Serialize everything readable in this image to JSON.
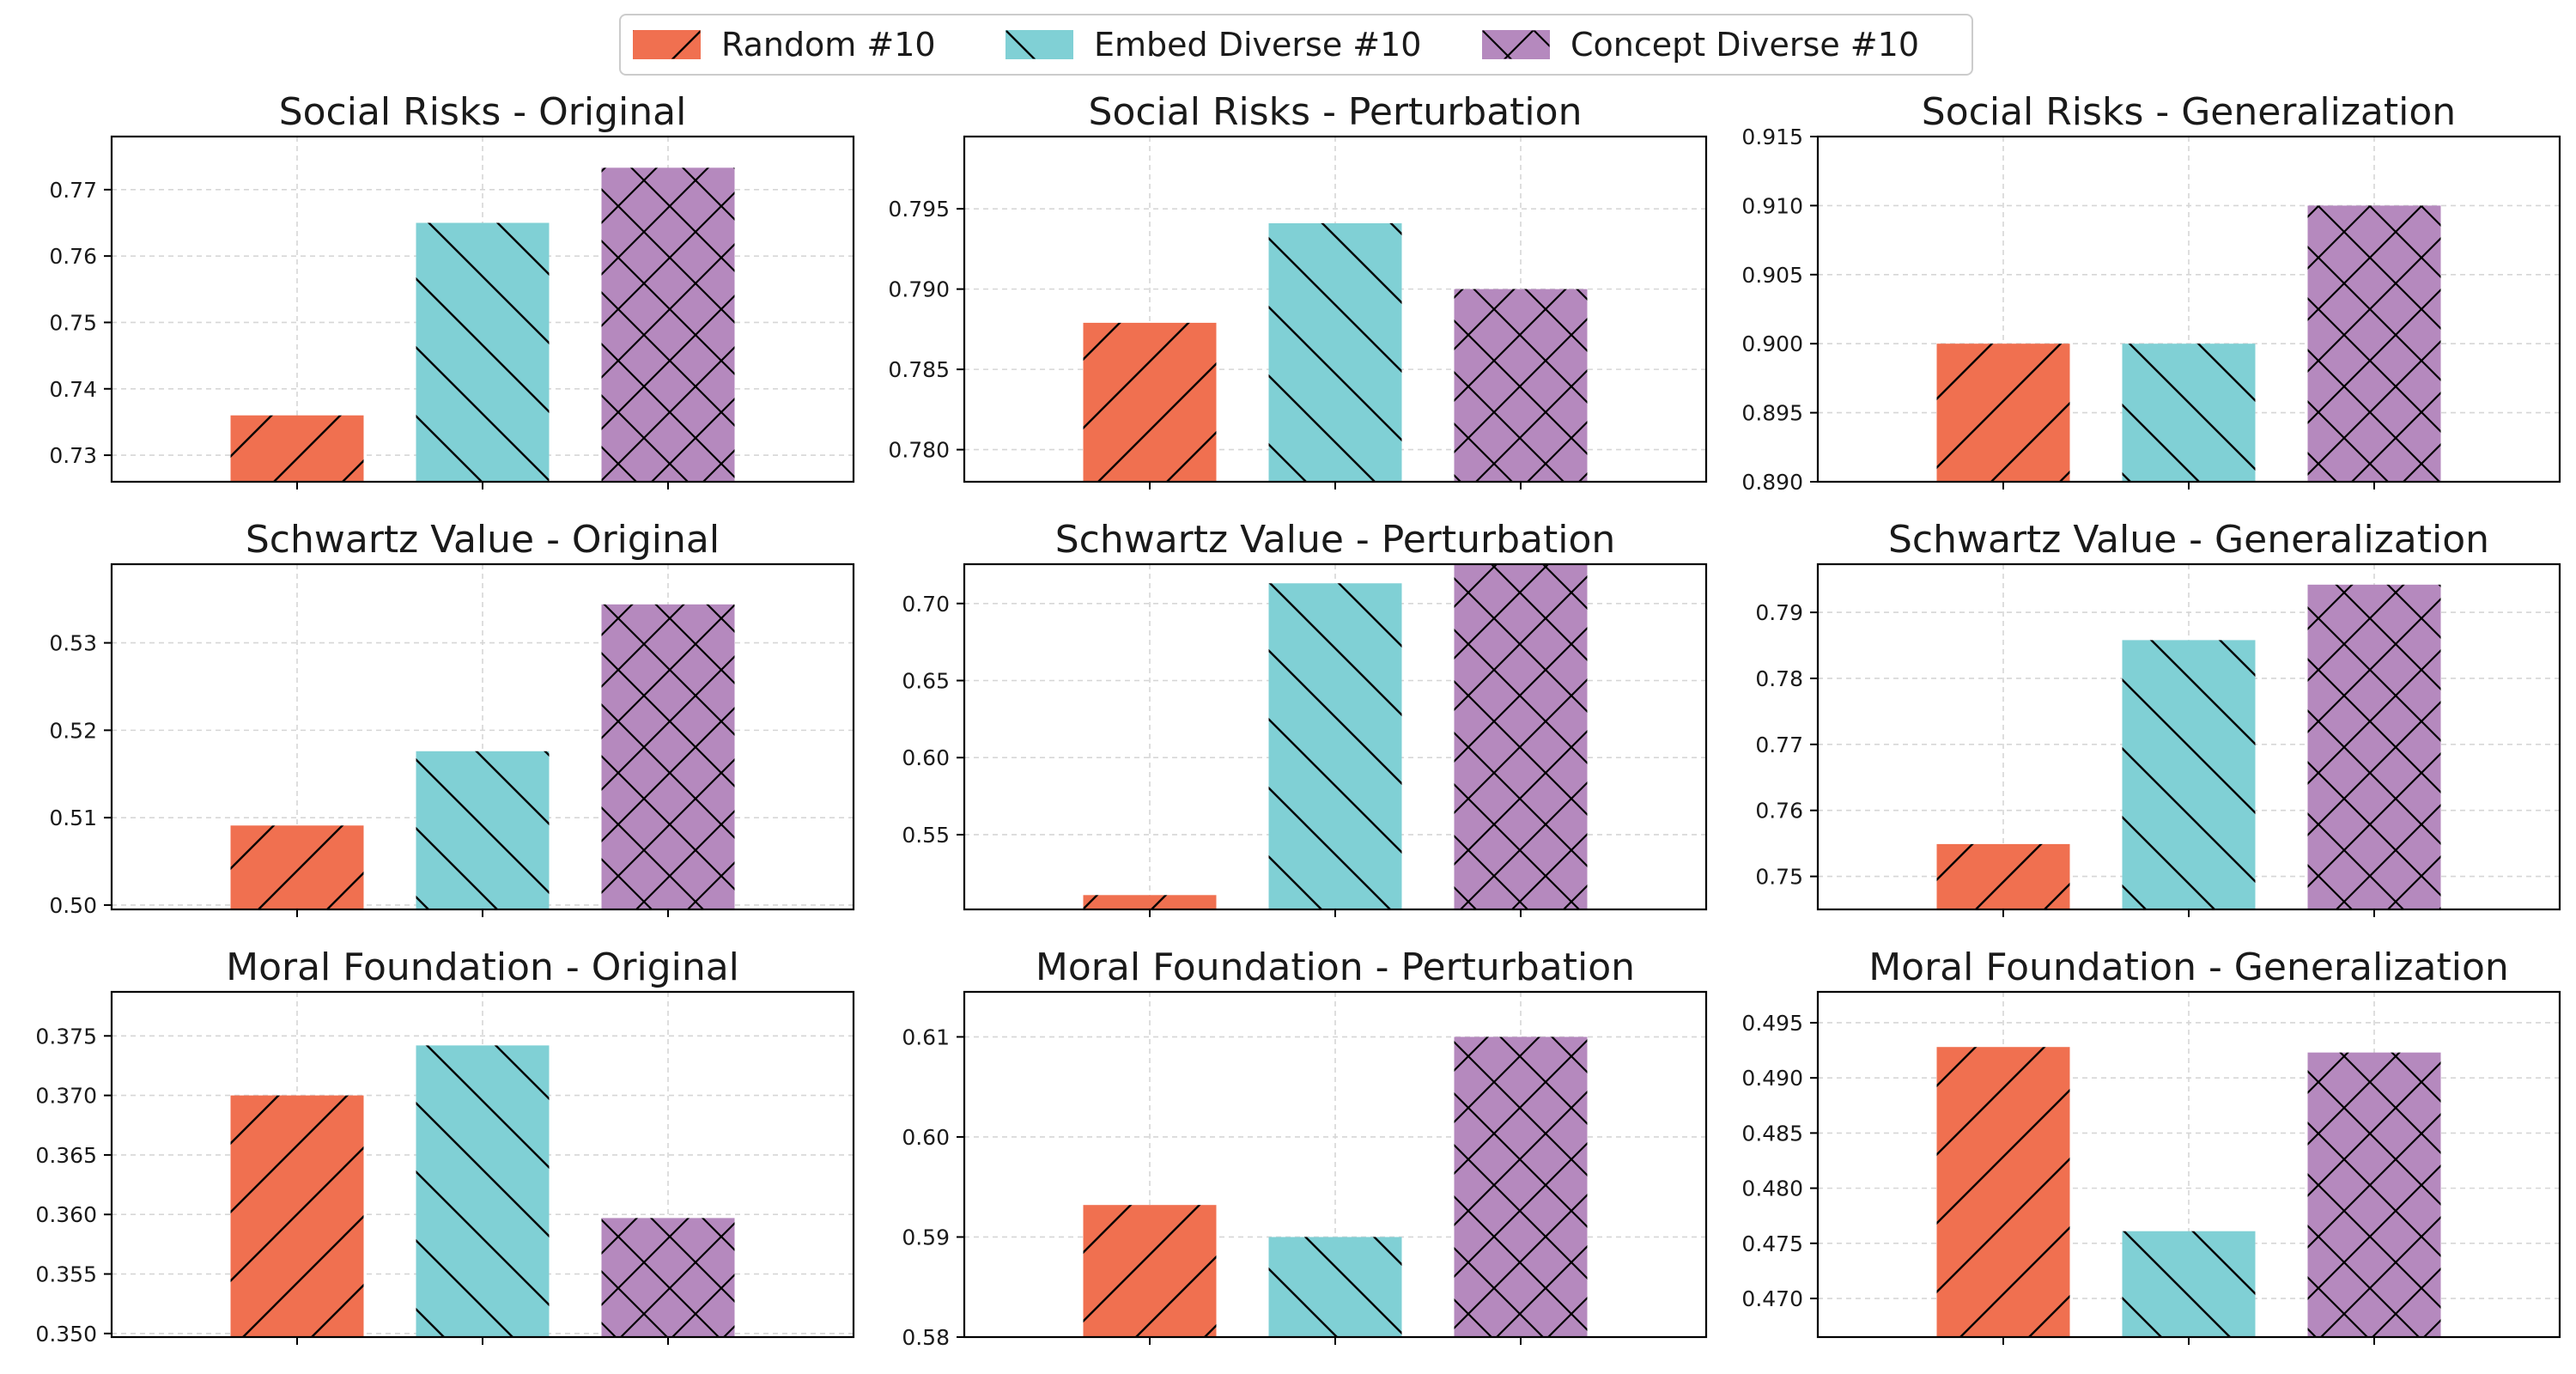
{
  "legend": [
    {
      "label": "Random #10",
      "color": "#f07050",
      "hatch": "forward"
    },
    {
      "label": "Embed Diverse #10",
      "color": "#80d0d5",
      "hatch": "back"
    },
    {
      "label": "Concept Diverse #10",
      "color": "#b589be",
      "hatch": "cross"
    }
  ],
  "chart_data": [
    {
      "type": "bar",
      "title": "Social Risks - Original",
      "series": [
        "Random #10",
        "Embed Diverse #10",
        "Concept Diverse #10"
      ],
      "values": [
        0.736,
        0.765,
        0.7733
      ],
      "ylim": [
        0.726,
        0.778
      ],
      "yticks": [
        0.73,
        0.74,
        0.75,
        0.76,
        0.77
      ],
      "tick_decimals": 2,
      "grid": true
    },
    {
      "type": "bar",
      "title": "Social Risks - Perturbation",
      "series": [
        "Random #10",
        "Embed Diverse #10",
        "Concept Diverse #10"
      ],
      "values": [
        0.7879,
        0.7941,
        0.79
      ],
      "ylim": [
        0.778,
        0.7995
      ],
      "yticks": [
        0.78,
        0.785,
        0.79,
        0.795
      ],
      "tick_decimals": 3,
      "grid": true
    },
    {
      "type": "bar",
      "title": "Social Risks - Generalization",
      "series": [
        "Random #10",
        "Embed Diverse #10",
        "Concept Diverse #10"
      ],
      "values": [
        0.9,
        0.9,
        0.91
      ],
      "ylim": [
        0.89,
        0.915
      ],
      "yticks": [
        0.89,
        0.895,
        0.9,
        0.905,
        0.91,
        0.915
      ],
      "tick_decimals": 3,
      "grid": true
    },
    {
      "type": "bar",
      "title": "Schwartz Value - Original",
      "series": [
        "Random #10",
        "Embed Diverse #10",
        "Concept Diverse #10"
      ],
      "values": [
        0.5091,
        0.5176,
        0.5344
      ],
      "ylim": [
        0.4995,
        0.539
      ],
      "yticks": [
        0.5,
        0.51,
        0.52,
        0.53
      ],
      "tick_decimals": 2,
      "grid": true
    },
    {
      "type": "bar",
      "title": "Schwartz Value - Perturbation",
      "series": [
        "Random #10",
        "Embed Diverse #10",
        "Concept Diverse #10"
      ],
      "values": [
        0.5108,
        0.7131,
        0.7256
      ],
      "ylim": [
        0.5015,
        0.7255
      ],
      "yticks": [
        0.55,
        0.6,
        0.65,
        0.7
      ],
      "tick_decimals": 2,
      "grid": true
    },
    {
      "type": "bar",
      "title": "Schwartz Value - Generalization",
      "series": [
        "Random #10",
        "Embed Diverse #10",
        "Concept Diverse #10"
      ],
      "values": [
        0.7549,
        0.7858,
        0.7942
      ],
      "ylim": [
        0.745,
        0.7973
      ],
      "yticks": [
        0.75,
        0.76,
        0.77,
        0.78,
        0.79
      ],
      "tick_decimals": 2,
      "grid": true
    },
    {
      "type": "bar",
      "title": "Moral Foundation - Original",
      "series": [
        "Random #10",
        "Embed Diverse #10",
        "Concept Diverse #10"
      ],
      "values": [
        0.37,
        0.3742,
        0.3597
      ],
      "ylim": [
        0.3497,
        0.3787
      ],
      "yticks": [
        0.35,
        0.355,
        0.36,
        0.365,
        0.37,
        0.375
      ],
      "tick_decimals": 3,
      "grid": true
    },
    {
      "type": "bar",
      "title": "Moral Foundation - Perturbation",
      "series": [
        "Random #10",
        "Embed Diverse #10",
        "Concept Diverse #10"
      ],
      "values": [
        0.5932,
        0.59,
        0.61
      ],
      "ylim": [
        0.58,
        0.6145
      ],
      "yticks": [
        0.58,
        0.59,
        0.6,
        0.61
      ],
      "tick_decimals": 2,
      "grid": true
    },
    {
      "type": "bar",
      "title": "Moral Foundation - Generalization",
      "series": [
        "Random #10",
        "Embed Diverse #10",
        "Concept Diverse #10"
      ],
      "values": [
        0.4928,
        0.4761,
        0.4923
      ],
      "ylim": [
        0.4665,
        0.4978
      ],
      "yticks": [
        0.47,
        0.475,
        0.48,
        0.485,
        0.49,
        0.495
      ],
      "tick_decimals": 3,
      "grid": true
    }
  ]
}
